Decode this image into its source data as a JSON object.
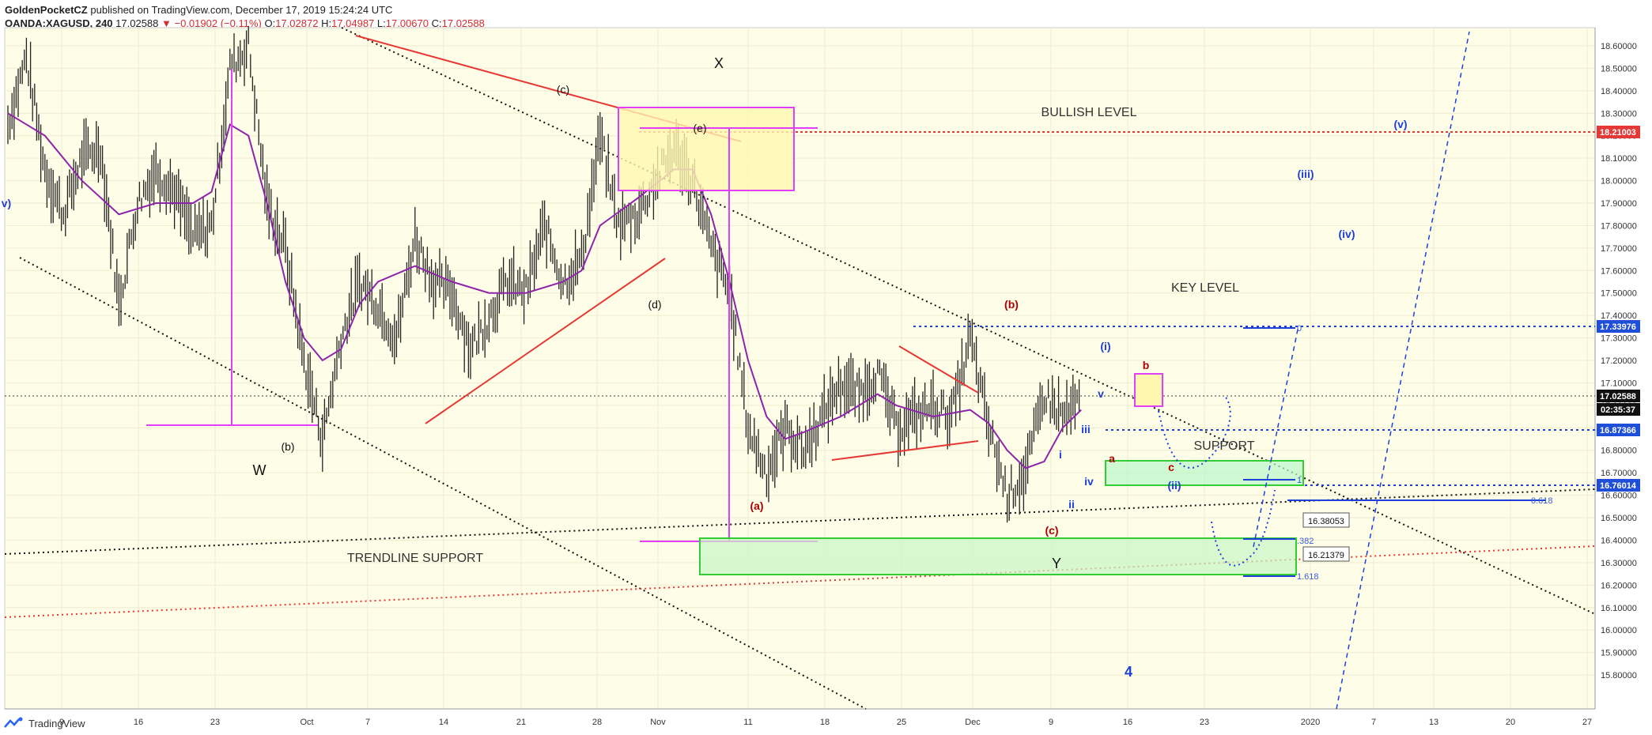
{
  "header": {
    "author": "GoldenPocketCZ",
    "published": "published on TradingView.com, December 17, 2019 15:24:24 UTC",
    "symbol_line": "OANDA:XAGUSD, 240",
    "last": "17.02588",
    "change": "−0.01902 (−0.11%)",
    "o_label": "O:",
    "o_val": "17.02872",
    "h_label": "H:",
    "h_val": "17.04987",
    "l_label": "L:",
    "l_val": "17.00670",
    "c_label": "C:",
    "c_val": "17.02588"
  },
  "footer": {
    "brand": "TradingView"
  },
  "colors": {
    "bg": "#fefde7",
    "candle": "#222222",
    "ma": "#8e24aa",
    "trend_red": "#e53935",
    "dotted_black": "#111111",
    "blue": "#1e40d8",
    "magenta": "#e040fb",
    "green": "#33cc33",
    "red_label_bg": "#e53935"
  },
  "chart_data": {
    "type": "line",
    "instrument": "OANDA:XAGUSD",
    "timeframe": "240",
    "ylim": [
      15.72,
      18.66
    ],
    "x_ticks": [
      "9",
      "16",
      "23",
      "Oct",
      "7",
      "14",
      "21",
      "28",
      "Nov",
      "11",
      "18",
      "25",
      "Dec",
      "9",
      "16",
      "23",
      "2020",
      "7",
      "13",
      "20",
      "27"
    ],
    "y_ticks": [
      "18.60000",
      "18.50000",
      "18.40000",
      "18.30000",
      "18.20000",
      "18.10000",
      "18.00000",
      "17.90000",
      "17.80000",
      "17.70000",
      "17.60000",
      "17.50000",
      "17.40000",
      "17.30000",
      "17.20000",
      "17.10000",
      "17.00000",
      "16.90000",
      "16.80000",
      "16.70000",
      "16.60000",
      "16.50000",
      "16.40000",
      "16.30000",
      "16.20000",
      "16.10000",
      "16.00000",
      "15.90000",
      "15.80000"
    ],
    "price_labels": [
      {
        "value": "18.21003",
        "style": "red"
      },
      {
        "value": "17.33976",
        "style": "blue"
      },
      {
        "value": "17.02588",
        "style": "black"
      },
      {
        "value": "02:35:37",
        "style": "black"
      },
      {
        "value": "16.87366",
        "style": "blue"
      },
      {
        "value": "16.76014",
        "style": "blue"
      }
    ],
    "price_path": [
      [
        0,
        18.25
      ],
      [
        1,
        18.55
      ],
      [
        2,
        18.05
      ],
      [
        3,
        17.85
      ],
      [
        4,
        18.1
      ],
      [
        5,
        18.15
      ],
      [
        6,
        17.45
      ],
      [
        7,
        17.9
      ],
      [
        8,
        18.05
      ],
      [
        9,
        17.95
      ],
      [
        10,
        17.75
      ],
      [
        11,
        17.8
      ],
      [
        12,
        18.5
      ],
      [
        13,
        18.6
      ],
      [
        14,
        17.9
      ],
      [
        15,
        17.7
      ],
      [
        16,
        17.2
      ],
      [
        17,
        16.85
      ],
      [
        18,
        17.3
      ],
      [
        19,
        17.55
      ],
      [
        20,
        17.45
      ],
      [
        21,
        17.3
      ],
      [
        22,
        17.75
      ],
      [
        23,
        17.55
      ],
      [
        24,
        17.5
      ],
      [
        25,
        17.25
      ],
      [
        26,
        17.4
      ],
      [
        27,
        17.55
      ],
      [
        28,
        17.5
      ],
      [
        29,
        17.8
      ],
      [
        30,
        17.55
      ],
      [
        31,
        17.65
      ],
      [
        32,
        18.2
      ],
      [
        33,
        17.8
      ],
      [
        34,
        17.85
      ],
      [
        35,
        18.0
      ],
      [
        36,
        18.15
      ],
      [
        37,
        18.0
      ],
      [
        38,
        17.7
      ],
      [
        39,
        17.5
      ],
      [
        40,
        16.9
      ],
      [
        41,
        16.7
      ],
      [
        42,
        16.9
      ],
      [
        43,
        16.8
      ],
      [
        44,
        16.95
      ],
      [
        45,
        17.1
      ],
      [
        46,
        17.05
      ],
      [
        47,
        17.15
      ],
      [
        48,
        16.9
      ],
      [
        49,
        16.95
      ],
      [
        50,
        17.0
      ],
      [
        51,
        16.95
      ],
      [
        52,
        17.3
      ],
      [
        53,
        16.9
      ],
      [
        54,
        16.6
      ],
      [
        55,
        16.7
      ],
      [
        56,
        17.05
      ],
      [
        57,
        16.95
      ],
      [
        58,
        17.02
      ]
    ],
    "ma_path": [
      [
        0,
        18.3
      ],
      [
        2,
        18.2
      ],
      [
        4,
        18.0
      ],
      [
        6,
        17.85
      ],
      [
        8,
        17.9
      ],
      [
        10,
        17.9
      ],
      [
        11,
        17.95
      ],
      [
        12,
        18.25
      ],
      [
        13,
        18.2
      ],
      [
        14,
        17.9
      ],
      [
        15,
        17.55
      ],
      [
        16,
        17.3
      ],
      [
        17,
        17.2
      ],
      [
        18,
        17.25
      ],
      [
        19,
        17.45
      ],
      [
        20,
        17.55
      ],
      [
        22,
        17.62
      ],
      [
        24,
        17.55
      ],
      [
        26,
        17.5
      ],
      [
        28,
        17.5
      ],
      [
        30,
        17.55
      ],
      [
        31,
        17.6
      ],
      [
        32,
        17.8
      ],
      [
        34,
        17.92
      ],
      [
        36,
        18.05
      ],
      [
        37,
        18.05
      ],
      [
        38,
        17.85
      ],
      [
        39,
        17.55
      ],
      [
        40,
        17.2
      ],
      [
        41,
        16.95
      ],
      [
        42,
        16.85
      ],
      [
        43,
        16.88
      ],
      [
        45,
        16.95
      ],
      [
        47,
        17.05
      ],
      [
        48,
        17.0
      ],
      [
        50,
        16.95
      ],
      [
        52,
        16.98
      ],
      [
        53,
        16.92
      ],
      [
        54,
        16.8
      ],
      [
        55,
        16.72
      ],
      [
        56,
        16.75
      ],
      [
        57,
        16.9
      ],
      [
        58,
        16.98
      ]
    ],
    "annotations": {
      "wave_labels": [
        {
          "text": "X",
          "color": "black"
        },
        {
          "text": "W",
          "color": "black"
        },
        {
          "text": "Y",
          "color": "black"
        },
        {
          "text": "(b)",
          "color": "black"
        },
        {
          "text": "(c)",
          "color": "black"
        },
        {
          "text": "(d)",
          "color": "black"
        },
        {
          "text": "(e)",
          "color": "black"
        },
        {
          "text": "(a)",
          "color": "darkred"
        },
        {
          "text": "(b)",
          "color": "darkred"
        },
        {
          "text": "(c)",
          "color": "darkred"
        },
        {
          "text": "a",
          "color": "darkred"
        },
        {
          "text": "b",
          "color": "darkred"
        },
        {
          "text": "c",
          "color": "darkred"
        },
        {
          "text": "(i)",
          "color": "blue"
        },
        {
          "text": "(ii)",
          "color": "blue"
        },
        {
          "text": "(iii)",
          "color": "blue"
        },
        {
          "text": "(iv)",
          "color": "blue"
        },
        {
          "text": "(v)",
          "color": "blue"
        },
        {
          "text": "i",
          "color": "blue"
        },
        {
          "text": "ii",
          "color": "blue"
        },
        {
          "text": "iii",
          "color": "blue"
        },
        {
          "text": "iv",
          "color": "blue"
        },
        {
          "text": "v",
          "color": "blue"
        },
        {
          "text": "4",
          "color": "blue"
        },
        {
          "text": "v)",
          "color": "blue"
        }
      ],
      "text_labels": [
        "BULLISH LEVEL",
        "KEY LEVEL",
        "SUPPORT",
        "TRENDLINE SUPPORT"
      ],
      "fib_labels": [
        "0.618",
        "16.38053",
        "16.21379",
        ".382",
        "1.618",
        "1",
        "0"
      ]
    }
  }
}
